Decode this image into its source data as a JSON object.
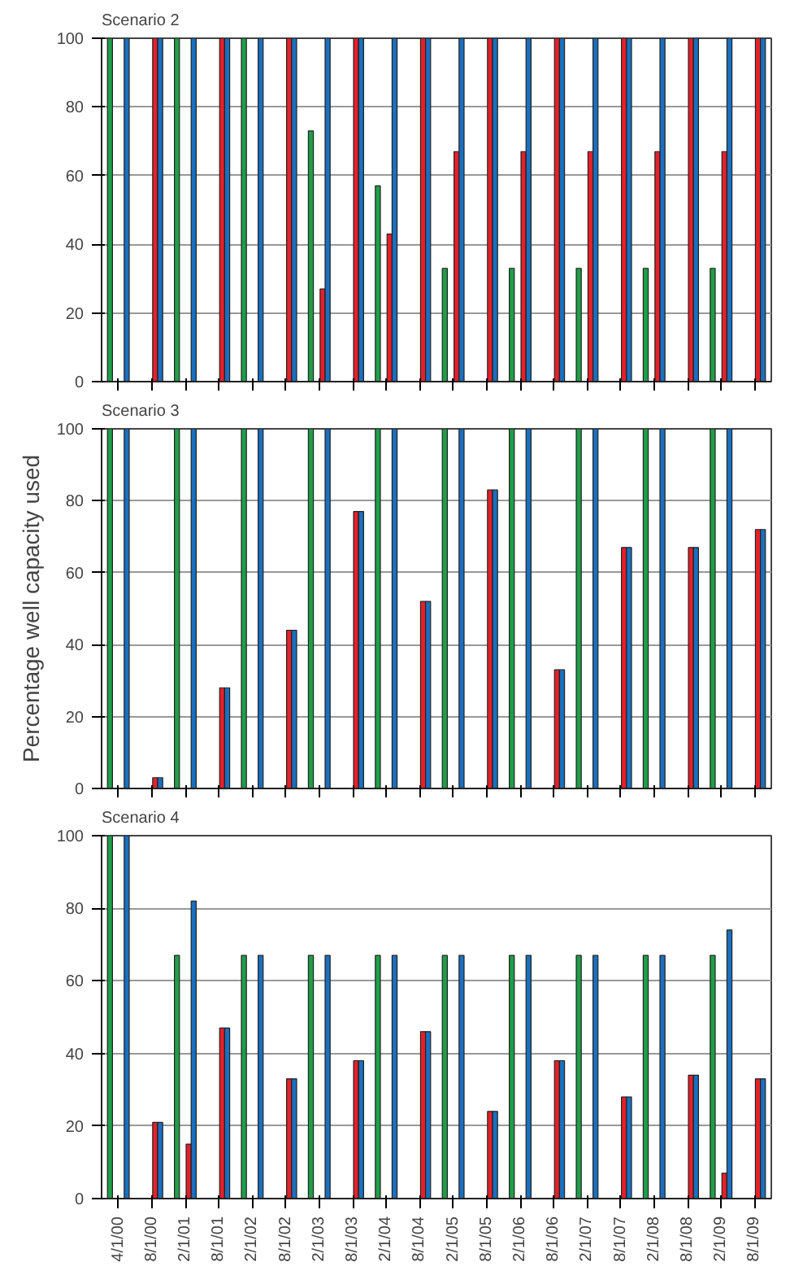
{
  "chart_data": [
    {
      "type": "bar",
      "title": "Scenario 2",
      "categories": [
        null,
        null,
        null,
        null,
        null,
        null,
        null,
        null,
        null,
        null,
        null,
        null,
        null,
        null,
        null,
        null,
        null,
        null,
        null,
        null
      ],
      "ylim": [
        0,
        100
      ],
      "yticks": [
        0,
        20,
        40,
        60,
        80,
        100
      ],
      "grid": "y",
      "tick_labels": "y",
      "series": [
        {
          "color": "#1f9e48",
          "values": [
            100,
            0,
            100,
            0,
            100,
            0,
            73,
            0,
            57,
            0,
            33,
            0,
            33,
            0,
            33,
            0,
            33,
            0,
            33,
            0
          ]
        },
        {
          "color": "#e5202a",
          "values": [
            0,
            100,
            0,
            100,
            0,
            100,
            27,
            100,
            43,
            100,
            67,
            100,
            67,
            100,
            67,
            100,
            67,
            100,
            67,
            100
          ]
        },
        {
          "color": "#1b6fbe",
          "values": [
            100,
            100,
            100,
            100,
            100,
            100,
            100,
            100,
            100,
            100,
            100,
            100,
            100,
            100,
            100,
            100,
            100,
            100,
            100,
            100
          ]
        }
      ]
    },
    {
      "type": "bar",
      "title": "Scenario 3",
      "ylabel": "Percentage well capacity used",
      "categories": [
        null,
        null,
        null,
        null,
        null,
        null,
        null,
        null,
        null,
        null,
        null,
        null,
        null,
        null,
        null,
        null,
        null,
        null,
        null,
        null
      ],
      "ylim": [
        0,
        100
      ],
      "yticks": [
        0,
        20,
        40,
        60,
        80,
        100
      ],
      "grid": "y",
      "tick_labels": "y",
      "series": [
        {
          "color": "#1f9e48",
          "values": [
            100,
            0,
            100,
            0,
            100,
            0,
            100,
            0,
            100,
            0,
            100,
            0,
            100,
            0,
            100,
            0,
            100,
            0,
            100,
            0
          ]
        },
        {
          "color": "#e5202a",
          "values": [
            0,
            3,
            0,
            28,
            0,
            44,
            0,
            77,
            0,
            52,
            0,
            83,
            0,
            33,
            0,
            67,
            0,
            67,
            0,
            72
          ]
        },
        {
          "color": "#1b6fbe",
          "values": [
            100,
            3,
            100,
            28,
            100,
            44,
            100,
            77,
            100,
            52,
            100,
            83,
            100,
            33,
            100,
            67,
            100,
            67,
            100,
            72
          ]
        }
      ]
    },
    {
      "type": "bar",
      "title": "Scenario 4",
      "categories": [
        "4/1/00",
        "8/1/00",
        "2/1/01",
        "8/1/01",
        "2/1/02",
        "8/1/02",
        "2/1/03",
        "8/1/03",
        "2/1/04",
        "8/1/04",
        "2/1/05",
        "8/1/05",
        "2/1/06",
        "8/1/06",
        "2/1/07",
        "8/1/07",
        "2/1/08",
        "8/1/08",
        "2/1/09",
        "8/1/09"
      ],
      "ylim": [
        0,
        100
      ],
      "yticks": [
        0,
        20,
        40,
        60,
        80,
        100
      ],
      "grid": "y",
      "series": [
        {
          "color": "#1f9e48",
          "values": [
            100,
            0,
            67,
            0,
            67,
            0,
            67,
            0,
            67,
            0,
            67,
            0,
            67,
            0,
            67,
            0,
            67,
            0,
            67,
            0
          ]
        },
        {
          "color": "#e5202a",
          "values": [
            0,
            21,
            15,
            47,
            0,
            33,
            0,
            38,
            0,
            46,
            0,
            24,
            0,
            38,
            0,
            28,
            0,
            34,
            7,
            33
          ]
        },
        {
          "color": "#1b6fbe",
          "values": [
            100,
            21,
            82,
            47,
            67,
            33,
            67,
            38,
            67,
            46,
            67,
            24,
            67,
            38,
            67,
            28,
            67,
            34,
            74,
            33
          ]
        }
      ]
    }
  ]
}
